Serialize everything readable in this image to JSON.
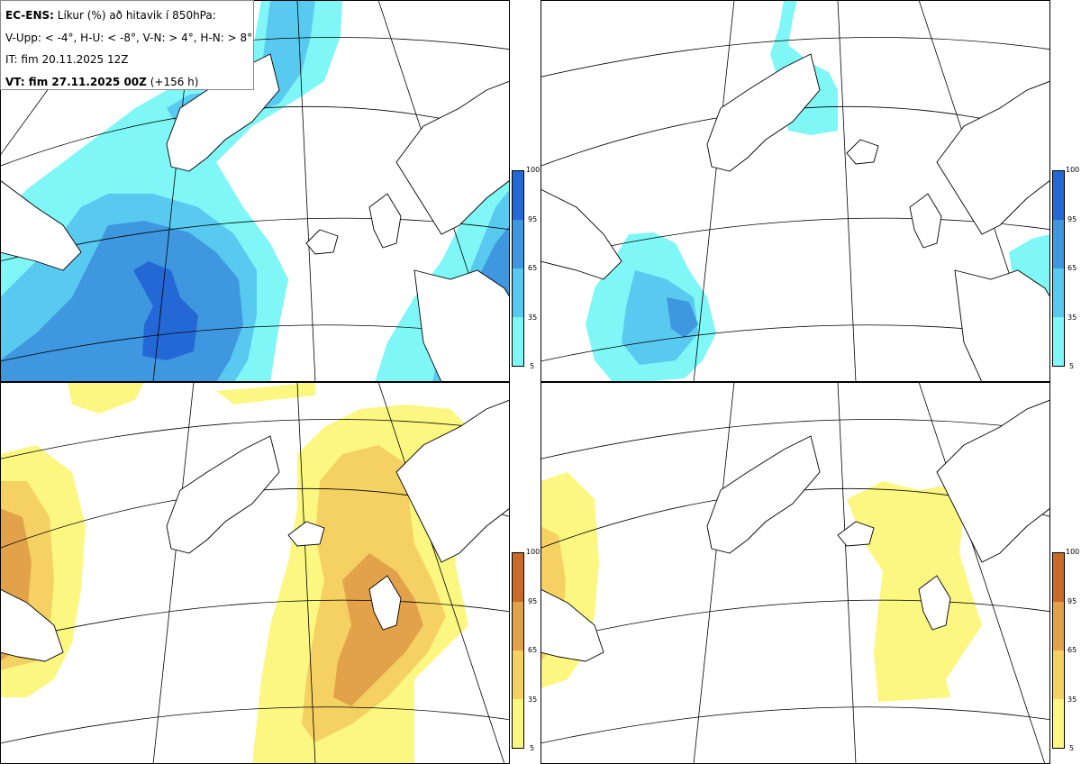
{
  "header": {
    "model": "EC-ENS:",
    "title": "Líkur (%) að hitavik í 850hPa:",
    "thresholds": "V-Upp: < -4°, H-U: < -8°, V-N: > 4°, H-N: > 8°",
    "init_time": "IT: fim 20.11.2025 12Z",
    "valid_label": "VT: fim 27.11.2025 00Z",
    "lead": "(+156 h)"
  },
  "colorbar": {
    "ticks": [
      "100",
      "95",
      "65",
      "35",
      "5"
    ]
  },
  "colors": {
    "cold": [
      "#7ff7f7",
      "#58c9ef",
      "#3f97e0",
      "#2468d6"
    ],
    "warm": [
      "#fbf780",
      "#f4d162",
      "#e2a24a",
      "#c96a26"
    ],
    "land_outline": "#000000"
  },
  "panels": [
    {
      "id": "tl",
      "variable": "V-Upp",
      "condition": "< -4°",
      "scale": "cold"
    },
    {
      "id": "tr",
      "variable": "H-U",
      "condition": "< -8°",
      "scale": "cold"
    },
    {
      "id": "bl",
      "variable": "V-N",
      "condition": "> 4°",
      "scale": "warm"
    },
    {
      "id": "br",
      "variable": "H-N",
      "condition": "> 8°",
      "scale": "warm"
    }
  ]
}
